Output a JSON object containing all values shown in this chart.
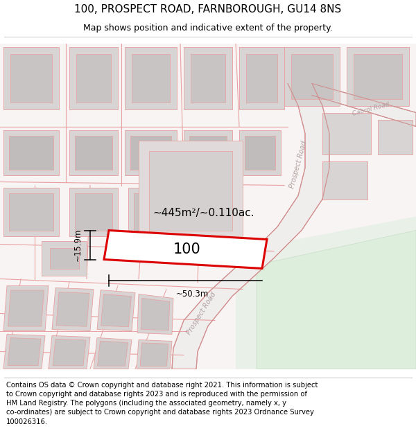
{
  "title": "100, PROSPECT ROAD, FARNBOROUGH, GU14 8NS",
  "subtitle": "Map shows position and indicative extent of the property.",
  "footer": "Contains OS data © Crown copyright and database right 2021. This information is subject\nto Crown copyright and database rights 2023 and is reproduced with the permission of\nHM Land Registry. The polygons (including the associated geometry, namely x, y\nco-ordinates) are subject to Crown copyright and database rights 2023 Ordnance Survey\n100026316.",
  "area_label": "~445m²/~0.110ac.",
  "property_number": "100",
  "dim_width": "~50.3m",
  "dim_height": "~15.9m",
  "map_bg": "#f9f6f6",
  "road_line_color": "#e8a0a0",
  "building_fill": "#d8d4d4",
  "building_edge": "#e8a0a0",
  "road_fill": "#f0e8e8",
  "road_edge": "#d09090",
  "green_fill": "#e8f0e8",
  "property_edge": "#dd0000",
  "title_fontsize": 11,
  "subtitle_fontsize": 9,
  "footer_fontsize": 7.2,
  "road_label_color": "#a09090",
  "dim_line_color": "#000000"
}
